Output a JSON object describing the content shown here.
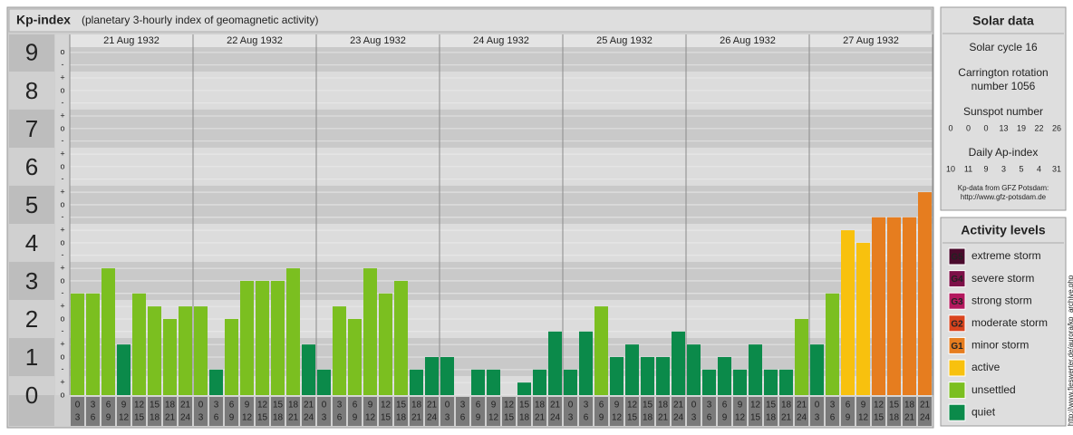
{
  "header": {
    "title": "Kp-index",
    "subtitle": "(planetary 3-hourly index of geomagnetic activity)"
  },
  "chart_data": {
    "type": "bar",
    "days": [
      "21 Aug 1932",
      "22 Aug 1932",
      "23 Aug 1932",
      "24 Aug 1932",
      "25 Aug 1932",
      "26 Aug 1932",
      "27 Aug 1932"
    ],
    "slot_labels": [
      [
        "0",
        "3"
      ],
      [
        "3",
        "6"
      ],
      [
        "6",
        "9"
      ],
      [
        "9",
        "12"
      ],
      [
        "12",
        "15"
      ],
      [
        "15",
        "18"
      ],
      [
        "18",
        "21"
      ],
      [
        "21",
        "24"
      ]
    ],
    "ylim": [
      0,
      9.33
    ],
    "yticks": [
      0,
      1,
      2,
      3,
      4,
      5,
      6,
      7,
      8,
      9
    ],
    "subticks": [
      {
        "value": 0,
        "label": "o"
      },
      {
        "value": 0.33,
        "label": "+"
      },
      {
        "value": 0.67,
        "label": "-"
      },
      {
        "value": 1,
        "label": "o"
      },
      {
        "value": 1.33,
        "label": "+"
      },
      {
        "value": 1.67,
        "label": "-"
      },
      {
        "value": 2,
        "label": "o"
      },
      {
        "value": 2.33,
        "label": "+"
      },
      {
        "value": 2.67,
        "label": "-"
      },
      {
        "value": 3,
        "label": "o"
      },
      {
        "value": 3.33,
        "label": "+"
      },
      {
        "value": 3.67,
        "label": "-"
      },
      {
        "value": 4,
        "label": "o"
      },
      {
        "value": 4.33,
        "label": "+"
      },
      {
        "value": 4.67,
        "label": "-"
      },
      {
        "value": 5,
        "label": "o"
      },
      {
        "value": 5.33,
        "label": "+"
      },
      {
        "value": 5.67,
        "label": "-"
      },
      {
        "value": 6,
        "label": "o"
      },
      {
        "value": 6.33,
        "label": "+"
      },
      {
        "value": 6.67,
        "label": "-"
      },
      {
        "value": 7,
        "label": "o"
      },
      {
        "value": 7.33,
        "label": "+"
      },
      {
        "value": 7.67,
        "label": "-"
      },
      {
        "value": 8,
        "label": "o"
      },
      {
        "value": 8.33,
        "label": "+"
      },
      {
        "value": 8.67,
        "label": "-"
      },
      {
        "value": 9,
        "label": "o"
      }
    ],
    "grid": true,
    "values": [
      2.67,
      2.67,
      3.33,
      1.33,
      2.67,
      2.33,
      2,
      2.33,
      2.33,
      0.67,
      2,
      3,
      3,
      3,
      3.33,
      1.33,
      0.67,
      2.33,
      2,
      3.33,
      2.67,
      3,
      0.67,
      1,
      1,
      0,
      0.67,
      0.67,
      0,
      0.33,
      0.67,
      1.67,
      0.67,
      1.67,
      2.33,
      1,
      1.33,
      1,
      1,
      1.67,
      1.33,
      0.67,
      1,
      0.67,
      1.33,
      0.67,
      0.67,
      2,
      1.33,
      2.67,
      4.33,
      4,
      4.67,
      4.67,
      4.67,
      5.33
    ],
    "colors": [
      "#7bbf20",
      "#7bbf20",
      "#7bbf20",
      "#0b8a4a",
      "#7bbf20",
      "#7bbf20",
      "#7bbf20",
      "#7bbf20",
      "#7bbf20",
      "#0b8a4a",
      "#7bbf20",
      "#7bbf20",
      "#7bbf20",
      "#7bbf20",
      "#7bbf20",
      "#0b8a4a",
      "#0b8a4a",
      "#7bbf20",
      "#7bbf20",
      "#7bbf20",
      "#7bbf20",
      "#7bbf20",
      "#0b8a4a",
      "#0b8a4a",
      "#0b8a4a",
      "#0b8a4a",
      "#0b8a4a",
      "#0b8a4a",
      "#0b8a4a",
      "#0b8a4a",
      "#0b8a4a",
      "#0b8a4a",
      "#0b8a4a",
      "#0b8a4a",
      "#7bbf20",
      "#0b8a4a",
      "#0b8a4a",
      "#0b8a4a",
      "#0b8a4a",
      "#0b8a4a",
      "#0b8a4a",
      "#0b8a4a",
      "#0b8a4a",
      "#0b8a4a",
      "#0b8a4a",
      "#0b8a4a",
      "#0b8a4a",
      "#7bbf20",
      "#0b8a4a",
      "#7bbf20",
      "#f8c10e",
      "#f8c10e",
      "#e67d1f",
      "#e67d1f",
      "#e67d1f",
      "#e67d1f"
    ]
  },
  "solar_data": {
    "title": "Solar data",
    "cycle": "Solar cycle 16",
    "carrington": [
      "Carrington rotation",
      "number 1056"
    ],
    "sunspot_title": "Sunspot number",
    "sunspots": [
      0,
      0,
      0,
      13,
      19,
      22,
      26
    ],
    "ap_title": "Daily Ap-index",
    "ap": [
      10,
      11,
      9,
      3,
      5,
      4,
      31
    ],
    "source": [
      "Kp-data from GFZ Potsdam:",
      "http://www.gfz-potsdam.de"
    ]
  },
  "activity_levels": {
    "title": "Activity levels",
    "items": [
      {
        "badge": "G5",
        "label": "extreme storm",
        "color": "#4a0a2c"
      },
      {
        "badge": "G4",
        "label": "severe storm",
        "color": "#7d1048"
      },
      {
        "badge": "G3",
        "label": "strong storm",
        "color": "#b3185e"
      },
      {
        "badge": "G2",
        "label": "moderate storm",
        "color": "#d9441e"
      },
      {
        "badge": "G1",
        "label": "minor storm",
        "color": "#e67d1f"
      },
      {
        "label": "active",
        "color": "#f8c10e"
      },
      {
        "label": "unsettled",
        "color": "#7bbf20"
      },
      {
        "label": "quiet",
        "color": "#0b8a4a"
      }
    ]
  },
  "credit": "http://www.fieswerter.de/aurora/kp_archive.php"
}
